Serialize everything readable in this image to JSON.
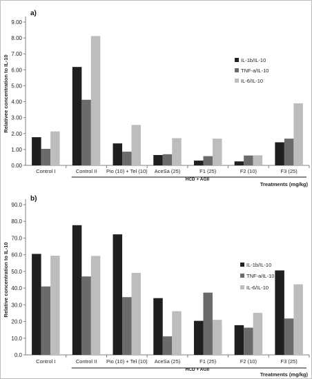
{
  "colors": {
    "series": [
      "#1f1f1f",
      "#6b6b6b",
      "#bdbdbd"
    ],
    "axis": "#7f7f7f",
    "frame": "#bdbdbd"
  },
  "chart_data": [
    {
      "type": "bar",
      "panel_label": "a)",
      "ylabel": "Relativee concentration to IL-10",
      "xlabel": "Treatments (mg/kg)",
      "group_label": "HCD + AGII",
      "categories": [
        "Control I",
        "Control II",
        "Pio (10) + Tel (10)",
        "AceSa (25)",
        "F1 (25)",
        "F2 (10)",
        "F3 (25)"
      ],
      "ylim": [
        0,
        9
      ],
      "yticks": [
        "0.00",
        "1.00",
        "2.00",
        "3.00",
        "4.00",
        "5.00",
        "6.00",
        "7.00",
        "8.00",
        "9.00"
      ],
      "grid": false,
      "legend_position": "right",
      "series": [
        {
          "name": "IL-1b/IL-10",
          "values": [
            1.77,
            6.18,
            1.38,
            0.65,
            0.3,
            0.25,
            1.45
          ]
        },
        {
          "name": "TNF-a/IL-10",
          "values": [
            1.04,
            4.12,
            0.86,
            0.7,
            0.58,
            0.62,
            1.68
          ]
        },
        {
          "name": "IL-6/IL-10",
          "values": [
            2.13,
            8.12,
            2.54,
            1.71,
            1.68,
            0.63,
            3.9
          ]
        }
      ]
    },
    {
      "type": "bar",
      "panel_label": "b)",
      "ylabel": "Relative concentration to IL-10",
      "xlabel": "Treatments (mg/kg)",
      "group_label": "HCD + AGII",
      "categories": [
        "Control I",
        "Control II",
        "Pio (10) + Tel (10)",
        "AceSa (25)",
        "F1 (25)",
        "F2 (10)",
        "F3 (25)"
      ],
      "ylim": [
        0,
        90
      ],
      "yticks": [
        "0.0",
        "10.0",
        "20.0",
        "30.0",
        "40.0",
        "50.0",
        "60.0",
        "70.0",
        "80.0",
        "90.0"
      ],
      "grid": false,
      "legend_position": "right",
      "series": [
        {
          "name": "IL-1b/IL-10",
          "values": [
            60.5,
            77.7,
            72.2,
            34.0,
            20.4,
            17.8,
            50.6
          ]
        },
        {
          "name": "TNF-a/IL-10",
          "values": [
            41.0,
            47.0,
            34.6,
            11.1,
            37.3,
            16.3,
            21.8
          ]
        },
        {
          "name": "IL-6/IL-10",
          "values": [
            59.4,
            59.3,
            49.1,
            26.2,
            21.0,
            25.2,
            42.3
          ]
        }
      ]
    }
  ]
}
